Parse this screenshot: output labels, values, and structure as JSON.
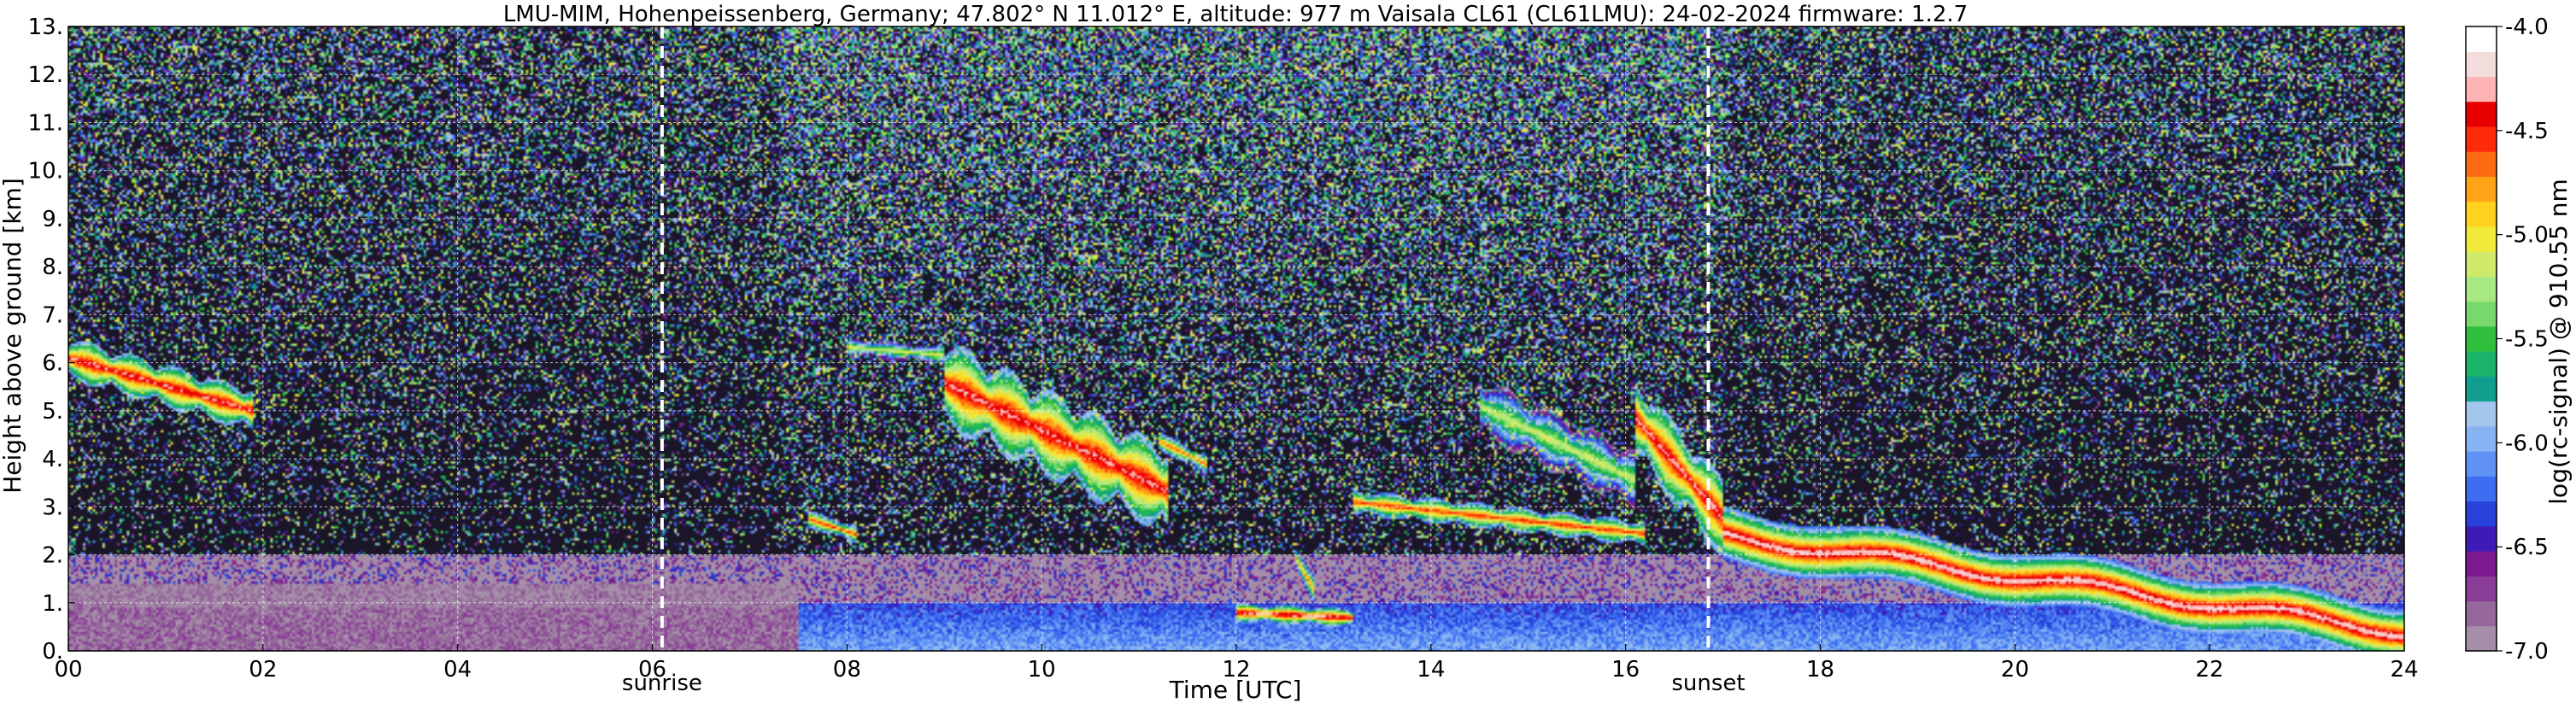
{
  "chart_data": {
    "type": "heatmap",
    "title": "LMU-MIM, Hohenpeissenberg, Germany; 47.802° N 11.012° E, altitude: 977 m    Vaisala CL61 (CL61LMU): 24-02-2024    firmware: 1.2.7",
    "xlabel": "Time [UTC]",
    "ylabel": "Height above ground [km]",
    "xlim": [
      0,
      24
    ],
    "ylim": [
      0,
      13
    ],
    "x_tick_values": [
      0,
      2,
      4,
      6,
      8,
      10,
      12,
      14,
      16,
      18,
      20,
      22,
      24
    ],
    "x_tick_labels": [
      "00",
      "02",
      "04",
      "06",
      "08",
      "10",
      "12",
      "14",
      "16",
      "18",
      "20",
      "22",
      "24"
    ],
    "y_tick_values": [
      0,
      1,
      2,
      3,
      4,
      5,
      6,
      7,
      8,
      9,
      10,
      11,
      12,
      13
    ],
    "y_tick_labels": [
      "0.",
      "1.",
      "2.",
      "3.",
      "4.",
      "5.",
      "6.",
      "7.",
      "8.",
      "9.",
      "10.",
      "11.",
      "12.",
      "13."
    ],
    "grid": true,
    "colorbar": {
      "label": "log(rc-signal) @ 910.55 nm",
      "range": [
        -7.0,
        -4.0
      ],
      "tick_values": [
        -7.0,
        -6.5,
        -6.0,
        -5.5,
        -5.0,
        -4.5,
        -4.0
      ],
      "tick_labels": [
        "-7.0",
        "-6.5",
        "-6.0",
        "-5.5",
        "-5.0",
        "-4.5",
        "-4.0"
      ],
      "color_levels": [
        "#a58fa8",
        "#95679b",
        "#8a3d97",
        "#7a1a8e",
        "#3e1bb6",
        "#2743db",
        "#3d6df0",
        "#5f92f4",
        "#86b3f2",
        "#a3c5ee",
        "#119e8f",
        "#1ab36a",
        "#2fbf3d",
        "#79d86b",
        "#a8e884",
        "#cfe96a",
        "#f0ea3a",
        "#ffd21f",
        "#ffa317",
        "#ff6b12",
        "#ff2a0a",
        "#e80000",
        "#ffb4b4",
        "#f2dcdc",
        "#ffffff"
      ]
    },
    "events": [
      {
        "label": "sunrise",
        "time": 6.1
      },
      {
        "label": "sunset",
        "time": 16.85
      }
    ],
    "features": {
      "clouds": [
        {
          "start": 0.0,
          "end": 1.9,
          "base_km": 4.6,
          "top_km": 6.6,
          "peak": -4.2
        },
        {
          "start": 7.6,
          "end": 8.1,
          "base_km": 2.3,
          "top_km": 2.9,
          "peak": -4.4
        },
        {
          "start": 8.0,
          "end": 9.0,
          "base_km": 6.1,
          "top_km": 6.4,
          "peak": -4.9
        },
        {
          "start": 9.0,
          "end": 11.3,
          "base_km": 2.5,
          "top_km": 6.6,
          "peak": -4.2
        },
        {
          "start": 11.2,
          "end": 11.7,
          "base_km": 3.7,
          "top_km": 4.6,
          "peak": -4.5
        },
        {
          "start": 12.0,
          "end": 13.2,
          "base_km": 0.65,
          "top_km": 0.85,
          "peak": -4.1
        },
        {
          "start": 12.6,
          "end": 12.8,
          "base_km": 1.0,
          "top_km": 2.3,
          "peak": -4.6
        },
        {
          "start": 13.2,
          "end": 16.2,
          "base_km": 2.2,
          "top_km": 3.4,
          "peak": -4.4
        },
        {
          "start": 14.5,
          "end": 16.1,
          "base_km": 3.0,
          "top_km": 5.8,
          "peak": -5.0
        },
        {
          "start": 16.1,
          "end": 17.0,
          "base_km": 2.0,
          "top_km": 5.8,
          "peak": -4.2
        }
      ],
      "residual_layer": {
        "start": 17.0,
        "end": 24.0,
        "base_km": 0.2,
        "top_km": 2.8,
        "peak": -4.1
      },
      "boundary_layer": {
        "start": 0.0,
        "end": 24.0,
        "top_km": 1.0
      }
    }
  }
}
